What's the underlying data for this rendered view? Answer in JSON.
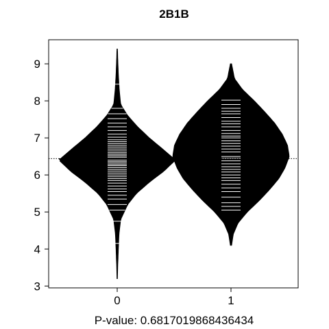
{
  "chart_data": {
    "type": "beanplot",
    "title": "2B1B",
    "xlabel": "P-value: 0.6817019868436434",
    "ylabel": "",
    "categories": [
      "0",
      "1"
    ],
    "xticks": [
      "0",
      "1"
    ],
    "yticks": [
      3,
      4,
      5,
      6,
      7,
      8,
      9
    ],
    "ylim": [
      2.95,
      9.65
    ],
    "overall_mean": 6.44,
    "grid": false,
    "legend": "none",
    "colors": {
      "fill": "#000000",
      "line": "#ffffff",
      "background": "#ffffff"
    },
    "series": [
      {
        "group": "0",
        "mean": 6.43,
        "ymin": 3.2,
        "ymax": 9.4,
        "density_profile": [
          [
            3.2,
            0.004
          ],
          [
            3.6,
            0.01
          ],
          [
            4.0,
            0.02
          ],
          [
            4.4,
            0.03
          ],
          [
            4.8,
            0.06
          ],
          [
            5.2,
            0.18
          ],
          [
            5.5,
            0.33
          ],
          [
            5.8,
            0.55
          ],
          [
            6.1,
            0.8
          ],
          [
            6.4,
            1.0
          ],
          [
            6.7,
            0.78
          ],
          [
            7.0,
            0.55
          ],
          [
            7.3,
            0.35
          ],
          [
            7.6,
            0.18
          ],
          [
            7.9,
            0.06
          ],
          [
            8.3,
            0.035
          ],
          [
            8.7,
            0.02
          ],
          [
            9.1,
            0.01
          ],
          [
            9.4,
            0.004
          ]
        ],
        "observations": [
          4.15,
          4.75,
          5.05,
          5.2,
          5.35,
          5.45,
          5.55,
          5.62,
          5.7,
          5.78,
          5.85,
          5.9,
          5.95,
          6.0,
          6.05,
          6.1,
          6.15,
          6.2,
          6.25,
          6.28,
          6.32,
          6.36,
          6.4,
          6.44,
          6.48,
          6.52,
          6.56,
          6.6,
          6.65,
          6.7,
          6.75,
          6.8,
          6.85,
          6.9,
          6.95,
          7.02,
          7.1,
          7.2,
          7.3,
          7.4,
          7.52,
          7.65,
          7.8,
          8.45
        ]
      },
      {
        "group": "1",
        "mean": 6.55,
        "ymin": 4.1,
        "ymax": 9.0,
        "density_profile": [
          [
            4.1,
            0.01
          ],
          [
            4.4,
            0.04
          ],
          [
            4.7,
            0.12
          ],
          [
            5.0,
            0.28
          ],
          [
            5.3,
            0.48
          ],
          [
            5.6,
            0.66
          ],
          [
            5.9,
            0.82
          ],
          [
            6.2,
            0.93
          ],
          [
            6.5,
            1.0
          ],
          [
            6.8,
            0.97
          ],
          [
            7.1,
            0.88
          ],
          [
            7.4,
            0.75
          ],
          [
            7.7,
            0.58
          ],
          [
            8.0,
            0.4
          ],
          [
            8.3,
            0.2
          ],
          [
            8.6,
            0.06
          ],
          [
            9.0,
            0.01
          ]
        ],
        "observations": [
          5.05,
          5.15,
          5.25,
          5.4,
          5.55,
          5.65,
          5.75,
          5.85,
          5.92,
          6.0,
          6.08,
          6.15,
          6.22,
          6.3,
          6.38,
          6.45,
          6.5,
          6.55,
          6.62,
          6.7,
          6.78,
          6.85,
          6.92,
          7.0,
          7.05,
          7.12,
          7.2,
          7.3,
          7.38,
          7.45,
          7.55,
          7.65,
          7.72,
          7.8,
          7.9,
          8.02
        ]
      }
    ]
  }
}
